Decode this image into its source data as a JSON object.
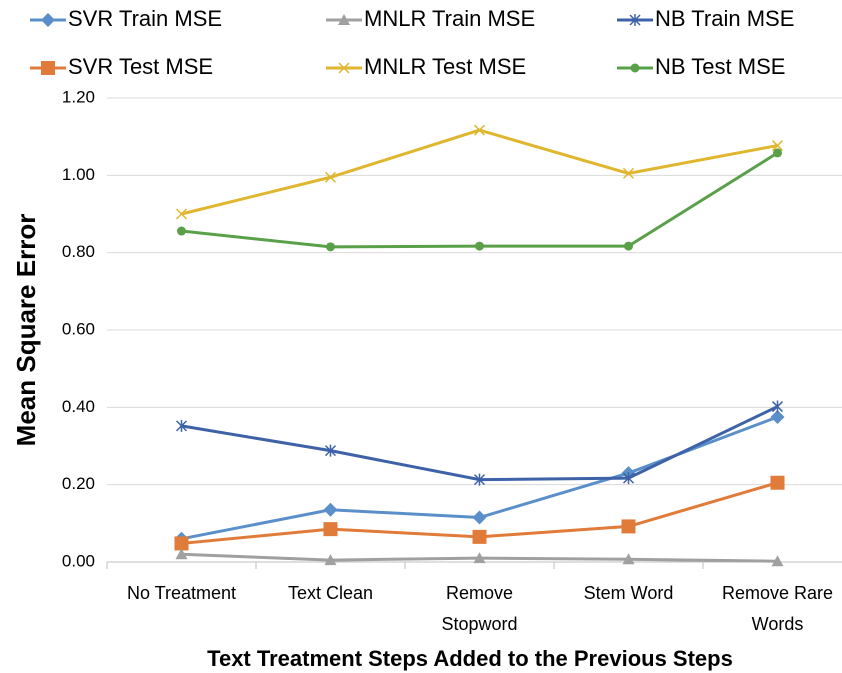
{
  "chart_data": {
    "type": "line",
    "xlabel": "Text Treatment Steps Added to the Previous Steps",
    "ylabel": "Mean Square Error",
    "categories": [
      "No Treatment",
      "Text Clean",
      "Remove\nStopword",
      "Stem Word",
      "Remove Rare\nWords"
    ],
    "series": [
      {
        "name": "SVR Train MSE",
        "color": "#5b8fc9",
        "marker": "diamond",
        "values": [
          0.06,
          0.135,
          0.115,
          0.23,
          0.375
        ]
      },
      {
        "name": "SVR Test MSE",
        "color": "#e07b39",
        "marker": "square",
        "values": [
          0.048,
          0.085,
          0.065,
          0.092,
          0.205
        ]
      },
      {
        "name": "MNLR Train MSE",
        "color": "#a0a0a0",
        "marker": "triangle",
        "values": [
          0.02,
          0.005,
          0.01,
          0.007,
          0.002
        ]
      },
      {
        "name": "MNLR Test MSE",
        "color": "#e0b62e",
        "marker": "x",
        "values": [
          0.9,
          0.995,
          1.117,
          1.005,
          1.077
        ]
      },
      {
        "name": "NB Train MSE",
        "color": "#3d62a8",
        "marker": "star",
        "values": [
          0.352,
          0.288,
          0.213,
          0.217,
          0.402
        ]
      },
      {
        "name": "NB Test MSE",
        "color": "#5aa048",
        "marker": "circle",
        "values": [
          0.856,
          0.815,
          0.817,
          0.817,
          1.058
        ]
      }
    ],
    "ylim": [
      0,
      1.2
    ],
    "yticks": [
      {
        "value": 0,
        "label": "0.00"
      },
      {
        "value": 0.2,
        "label": "0.20"
      },
      {
        "value": 0.4,
        "label": "0.40"
      },
      {
        "value": 0.6,
        "label": "0.60"
      },
      {
        "value": 0.8,
        "label": "0.80"
      },
      {
        "value": 1.0,
        "label": "1.00"
      },
      {
        "value": 1.2,
        "label": "1.20"
      }
    ],
    "grid": true,
    "legend": "top"
  }
}
